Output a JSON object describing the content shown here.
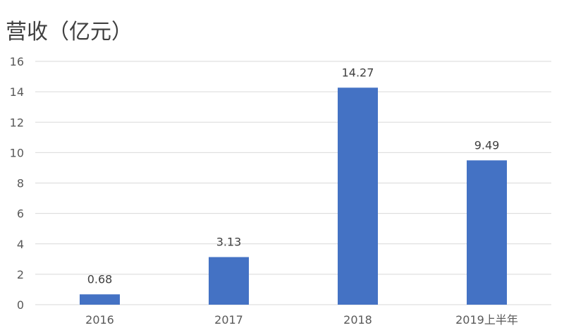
{
  "chart_data": {
    "type": "bar",
    "title": "营收（亿元）",
    "categories": [
      "2016",
      "2017",
      "2018",
      "2019上半年"
    ],
    "series": [
      {
        "values": [
          0.68,
          3.13,
          14.27,
          9.49
        ],
        "data_labels": [
          "0.68",
          "3.13",
          "14.27",
          "9.49"
        ]
      }
    ],
    "ylim": [
      0,
      16
    ],
    "yticks": [
      "0",
      "2",
      "4",
      "6",
      "8",
      "10",
      "12",
      "14",
      "16"
    ],
    "grid": true,
    "colors": {
      "bar": "#4472C4",
      "grid": "#D9D9D9"
    }
  }
}
